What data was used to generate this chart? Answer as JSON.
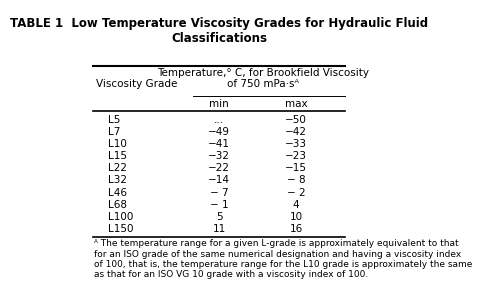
{
  "title": "TABLE 1  Low Temperature Viscosity Grades for Hydraulic Fluid\nClassifications",
  "col_header_top": "Temperature,° C, for Brookfield Viscosity\nof 750 mPa·sᴬ",
  "col_header_left": "Viscosity Grade",
  "col_header_min": "min",
  "col_header_max": "max",
  "grades": [
    "L5",
    "L7",
    "L10",
    "L15",
    "L22",
    "L32",
    "L46",
    "L68",
    "L100",
    "L150"
  ],
  "min_vals": [
    "...",
    "−49",
    "−41",
    "−32",
    "−22",
    "−14",
    "− 7",
    "− 1",
    "5",
    "11"
  ],
  "max_vals": [
    "−50",
    "−42",
    "−33",
    "−23",
    "−15",
    "− 8",
    "− 2",
    "4",
    "10",
    "16"
  ],
  "footnote": "ᴬ The temperature range for a given L-grade is approximately equivalent to that\nfor an ISO grade of the same numerical designation and having a viscosity index\nof 100, that is, the temperature range for the L10 grade is approximately the same\nas that for an ISO VG 10 grade with a viscosity index of 100.",
  "bg_color": "#ffffff",
  "text_color": "#000000",
  "title_fontsize": 8.5,
  "body_fontsize": 7.5,
  "footnote_fontsize": 6.5
}
